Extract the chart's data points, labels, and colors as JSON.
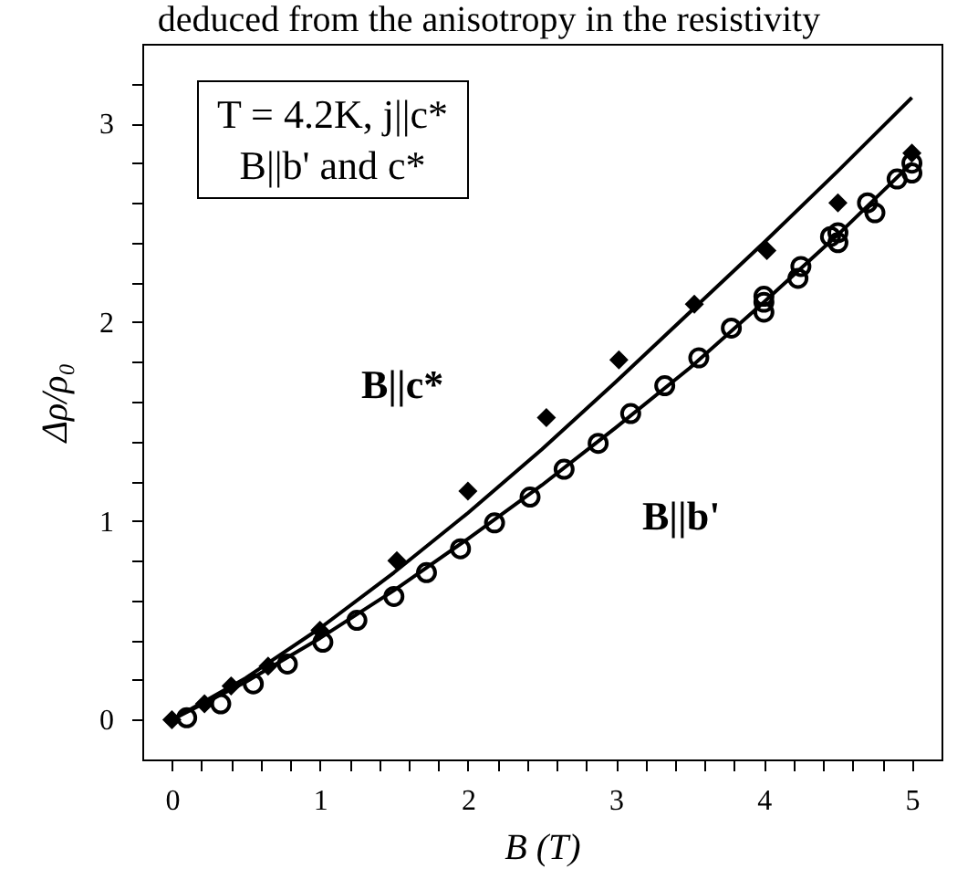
{
  "chart_data": {
    "type": "scatter",
    "xlabel": "B (T)",
    "ylabel": "Δρ/ρ₀",
    "xlim": [
      -0.2,
      5.2
    ],
    "ylim": [
      -0.2,
      3.4
    ],
    "xticks": [
      0,
      {
        "value": 0.2,
        "label": null
      },
      {
        "value": 0.4,
        "label": null
      },
      {
        "value": 0.6,
        "label": null
      },
      {
        "value": 0.8,
        "label": null
      },
      1,
      {
        "value": 1.2,
        "label": null
      },
      {
        "value": 1.4,
        "label": null
      },
      {
        "value": 1.6,
        "label": null
      },
      {
        "value": 1.8,
        "label": null
      },
      2,
      {
        "value": 2.2,
        "label": null
      },
      {
        "value": 2.4,
        "label": null
      },
      {
        "value": 2.6,
        "label": null
      },
      {
        "value": 2.8,
        "label": null
      },
      3,
      {
        "value": 3.2,
        "label": null
      },
      {
        "value": 3.4,
        "label": null
      },
      {
        "value": 3.6,
        "label": null
      },
      {
        "value": 3.8,
        "label": null
      },
      4,
      {
        "value": 4.2,
        "label": null
      },
      {
        "value": 4.4,
        "label": null
      },
      {
        "value": 4.6,
        "label": null
      },
      {
        "value": 4.8,
        "label": null
      },
      5
    ],
    "yticks": [
      0,
      {
        "value": 0.2,
        "label": null
      },
      {
        "value": 0.4,
        "label": null
      },
      {
        "value": 0.6,
        "label": null
      },
      {
        "value": 0.8,
        "label": null
      },
      1,
      {
        "value": 1.2,
        "label": null
      },
      {
        "value": 1.4,
        "label": null
      },
      {
        "value": 1.6,
        "label": null
      },
      {
        "value": 1.8,
        "label": null
      },
      2,
      {
        "value": 2.2,
        "label": null
      },
      {
        "value": 2.4,
        "label": null
      },
      {
        "value": 2.6,
        "label": null
      },
      {
        "value": 2.8,
        "label": null
      },
      3,
      {
        "value": 3.2,
        "label": null
      }
    ],
    "series": [
      {
        "type": "line",
        "color": "#000000",
        "x": [
          0,
          0.5,
          1,
          1.5,
          2,
          2.5,
          3,
          3.5,
          4,
          4.5,
          5
        ],
        "values": [
          0,
          0.21,
          0.46,
          0.74,
          1.04,
          1.36,
          1.7,
          2.05,
          2.4,
          2.76,
          3.13
        ]
      },
      {
        "type": "line",
        "color": "#000000",
        "x": [
          0,
          0.5,
          1,
          1.5,
          2,
          2.5,
          3,
          3.5,
          4,
          4.5,
          5
        ],
        "values": [
          0,
          0.19,
          0.41,
          0.65,
          0.91,
          1.18,
          1.47,
          1.77,
          2.1,
          2.44,
          2.8
        ]
      },
      {
        "type": "scatter",
        "marker": "diamond",
        "color": "#000000",
        "x": [
          0,
          0.22,
          0.4,
          0.65,
          1.0,
          1.52,
          2.0,
          2.53,
          3.02,
          3.53,
          4.02,
          4.5,
          5.0
        ],
        "values": [
          0,
          0.08,
          0.17,
          0.27,
          0.45,
          0.8,
          1.15,
          1.52,
          1.81,
          2.09,
          2.36,
          2.6,
          2.85
        ]
      },
      {
        "type": "scatter",
        "marker": "circle",
        "color": "#000000",
        "x": [
          0.1,
          0.33,
          0.55,
          0.78,
          1.02,
          1.25,
          1.5,
          1.72,
          1.95,
          2.18,
          2.42,
          2.65,
          2.88,
          3.1,
          3.33,
          3.56,
          3.78,
          4.0,
          4.0,
          4.0,
          4.23,
          4.25,
          4.45,
          4.5,
          4.5,
          4.7,
          4.75,
          4.9,
          5.0,
          5.0
        ],
        "values": [
          0.01,
          0.08,
          0.18,
          0.28,
          0.39,
          0.5,
          0.62,
          0.74,
          0.86,
          0.99,
          1.12,
          1.26,
          1.39,
          1.54,
          1.68,
          1.82,
          1.97,
          2.05,
          2.1,
          2.13,
          2.22,
          2.28,
          2.43,
          2.45,
          2.4,
          2.6,
          2.55,
          2.72,
          2.75,
          2.8
        ]
      }
    ],
    "annotations": [
      "deduced from the anisotropy in the resistivity",
      "T = 4.2K, j||c*",
      "B||b' and c*",
      "B||c*",
      "B||b'"
    ]
  }
}
